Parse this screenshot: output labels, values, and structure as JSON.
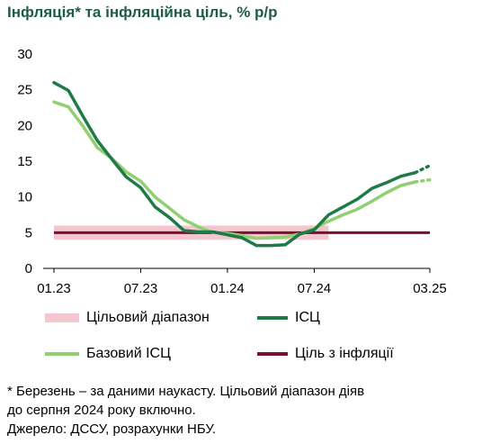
{
  "title": "Інфляція* та інфляційна ціль, % р/р",
  "footnotes": {
    "note": "* Березень – за даними наукасту. Цільовий діапазон діяв",
    "note2": "до серпня 2024 року включно.",
    "source": "Джерело: ДССУ, розрахунки НБУ."
  },
  "legend": {
    "target_range": "Цільовий діапазон",
    "cpi": "ІСЦ",
    "core_cpi": "Базовий ІСЦ",
    "target": "Ціль з інфляції"
  },
  "colors": {
    "cpi": "#1e7b48",
    "core_cpi": "#92cf72",
    "target": "#7a1030",
    "target_range": "#f4c6d0"
  },
  "chart_data": {
    "type": "line",
    "title": "Інфляція* та інфляційна ціль, % р/р",
    "x_tick_labels": [
      "01.23",
      "07.23",
      "01.24",
      "07.24",
      "03.25"
    ],
    "x_tick_months": [
      0,
      6,
      12,
      18,
      26
    ],
    "y_ticks": [
      0,
      5,
      10,
      15,
      20,
      25,
      30
    ],
    "ylim": [
      0,
      30
    ],
    "x_months": [
      "01.23",
      "02.23",
      "03.23",
      "04.23",
      "05.23",
      "06.23",
      "07.23",
      "08.23",
      "09.23",
      "10.23",
      "11.23",
      "12.23",
      "01.24",
      "02.24",
      "03.24",
      "04.24",
      "05.24",
      "06.24",
      "07.24",
      "08.24",
      "09.24",
      "10.24",
      "11.24",
      "12.24",
      "01.25",
      "02.25",
      "03.25"
    ],
    "series": [
      {
        "name": "ІСЦ",
        "key": "cpi",
        "values": [
          26.0,
          24.9,
          21.3,
          17.9,
          15.3,
          12.8,
          11.3,
          8.6,
          7.1,
          5.3,
          5.1,
          5.1,
          4.7,
          4.3,
          3.2,
          3.2,
          3.3,
          4.8,
          5.4,
          7.5,
          8.6,
          9.7,
          11.2,
          12.0,
          12.9,
          13.4,
          14.4
        ],
        "nowcast_from": 25
      },
      {
        "name": "Базовий ІСЦ",
        "key": "core_cpi",
        "values": [
          23.3,
          22.6,
          19.9,
          16.9,
          15.4,
          13.5,
          12.2,
          10.0,
          8.4,
          6.8,
          5.8,
          5.0,
          4.9,
          4.6,
          4.2,
          4.3,
          4.4,
          4.8,
          5.6,
          6.6,
          7.5,
          8.3,
          9.4,
          10.6,
          11.6,
          12.1,
          12.4
        ],
        "nowcast_from": 25
      }
    ],
    "target": {
      "name": "Ціль з інфляції",
      "value": 5,
      "from": 0,
      "to": 26
    },
    "target_range": {
      "name": "Цільовий діапазон",
      "low": 4,
      "high": 6,
      "from": 0,
      "to": 19
    },
    "grid": false,
    "legend_position": "bottom"
  }
}
